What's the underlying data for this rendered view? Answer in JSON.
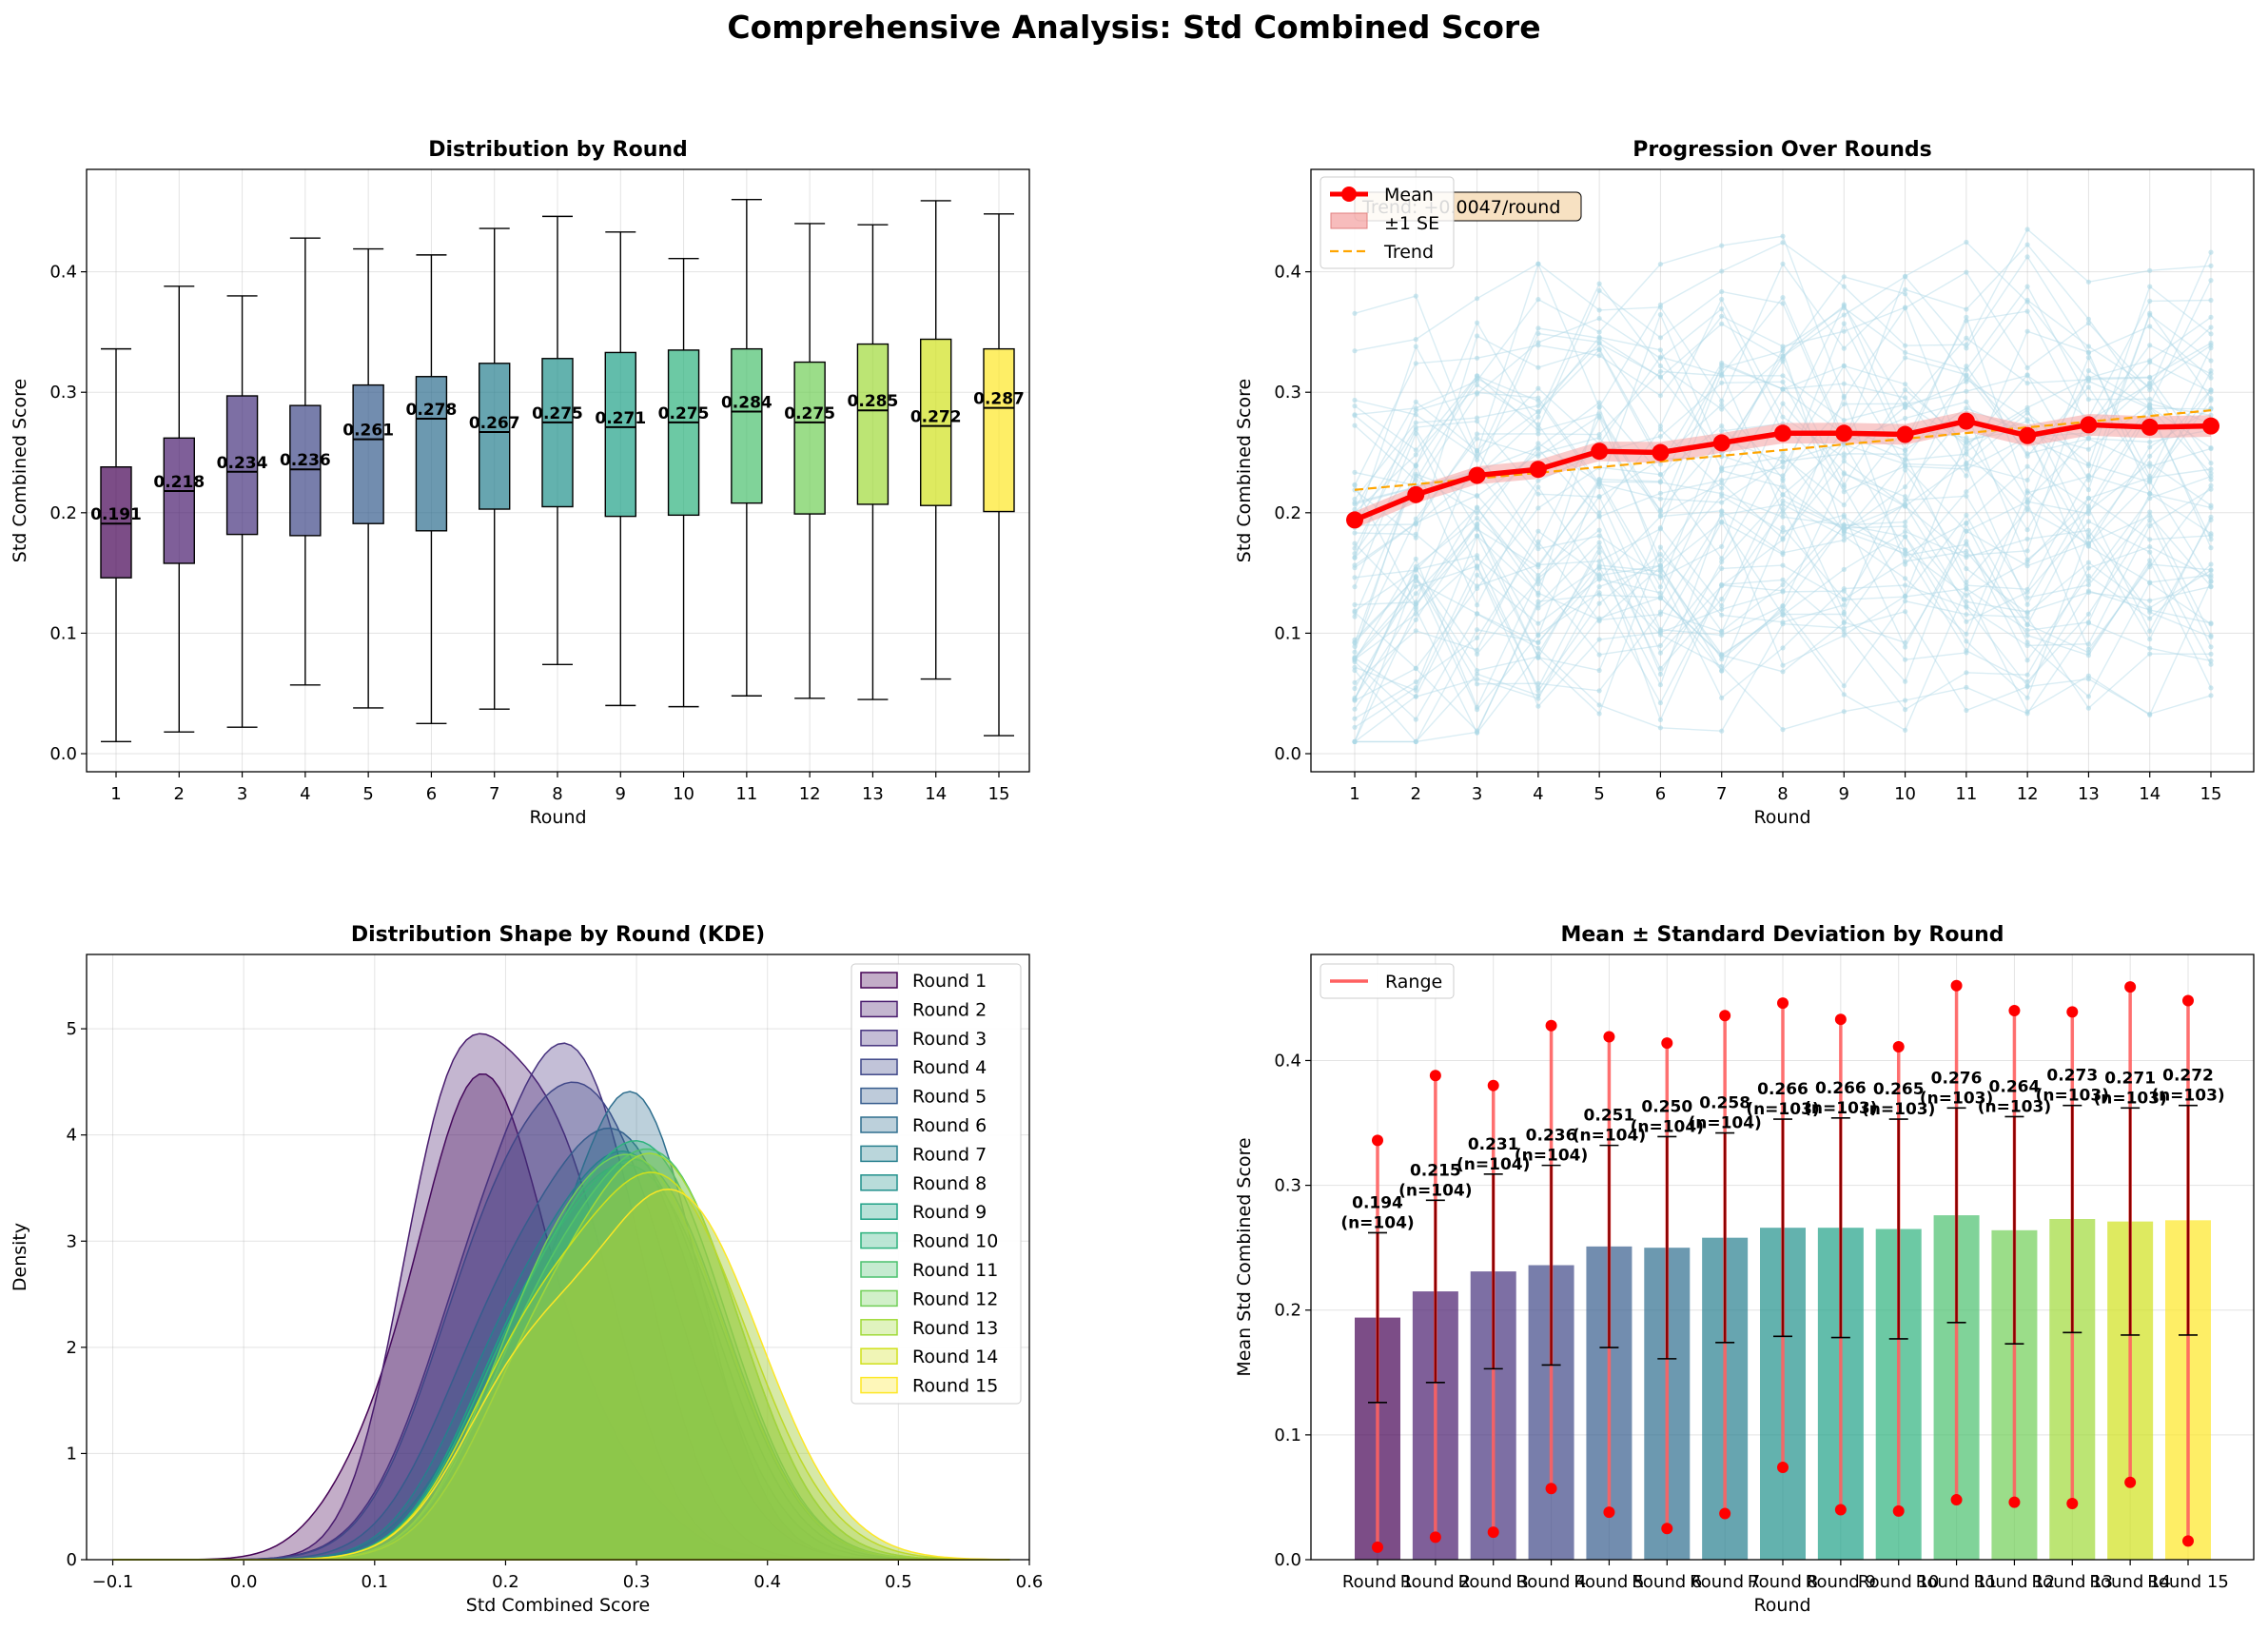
{
  "figure": {
    "title": "Comprehensive Analysis: Std Combined Score"
  },
  "chart_data": [
    {
      "id": "boxplot",
      "type": "box",
      "title": "Distribution by Round",
      "xlabel": "Round",
      "ylabel": "Std Combined Score",
      "ylim": [
        -0.015,
        0.485
      ],
      "yticks": [
        "0.0",
        "0.1",
        "0.2",
        "0.3",
        "0.4"
      ],
      "grid": true,
      "categories": [
        "1",
        "2",
        "3",
        "4",
        "5",
        "6",
        "7",
        "8",
        "9",
        "10",
        "11",
        "12",
        "13",
        "14",
        "15"
      ],
      "median_labels": [
        "0.191",
        "0.218",
        "0.234",
        "0.236",
        "0.261",
        "0.278",
        "0.267",
        "0.275",
        "0.271",
        "0.275",
        "0.284",
        "0.275",
        "0.285",
        "0.272",
        "0.287"
      ],
      "boxes": [
        {
          "whislo": 0.01,
          "q1": 0.146,
          "med": 0.191,
          "q3": 0.238,
          "whishi": 0.336
        },
        {
          "whislo": 0.018,
          "q1": 0.158,
          "med": 0.218,
          "q3": 0.262,
          "whishi": 0.388
        },
        {
          "whislo": 0.022,
          "q1": 0.182,
          "med": 0.234,
          "q3": 0.297,
          "whishi": 0.38
        },
        {
          "whislo": 0.057,
          "q1": 0.181,
          "med": 0.236,
          "q3": 0.289,
          "whishi": 0.428
        },
        {
          "whislo": 0.038,
          "q1": 0.191,
          "med": 0.261,
          "q3": 0.306,
          "whishi": 0.419
        },
        {
          "whislo": 0.025,
          "q1": 0.185,
          "med": 0.278,
          "q3": 0.313,
          "whishi": 0.414
        },
        {
          "whislo": 0.037,
          "q1": 0.203,
          "med": 0.267,
          "q3": 0.324,
          "whishi": 0.436
        },
        {
          "whislo": 0.074,
          "q1": 0.205,
          "med": 0.275,
          "q3": 0.328,
          "whishi": 0.446
        },
        {
          "whislo": 0.04,
          "q1": 0.197,
          "med": 0.271,
          "q3": 0.333,
          "whishi": 0.433
        },
        {
          "whislo": 0.039,
          "q1": 0.198,
          "med": 0.275,
          "q3": 0.335,
          "whishi": 0.411
        },
        {
          "whislo": 0.048,
          "q1": 0.208,
          "med": 0.284,
          "q3": 0.336,
          "whishi": 0.46
        },
        {
          "whislo": 0.046,
          "q1": 0.199,
          "med": 0.275,
          "q3": 0.325,
          "whishi": 0.44
        },
        {
          "whislo": 0.045,
          "q1": 0.207,
          "med": 0.285,
          "q3": 0.34,
          "whishi": 0.439
        },
        {
          "whislo": 0.062,
          "q1": 0.206,
          "med": 0.272,
          "q3": 0.344,
          "whishi": 0.459
        },
        {
          "whislo": 0.015,
          "q1": 0.201,
          "med": 0.287,
          "q3": 0.336,
          "whishi": 0.448
        }
      ]
    },
    {
      "id": "progression",
      "type": "line",
      "title": "Progression Over Rounds",
      "xlabel": "Round",
      "ylabel": "Std Combined Score",
      "ylim": [
        -0.015,
        0.485
      ],
      "yticks": [
        "0.0",
        "0.1",
        "0.2",
        "0.3",
        "0.4"
      ],
      "grid": true,
      "x": [
        1,
        2,
        3,
        4,
        5,
        6,
        7,
        8,
        9,
        10,
        11,
        12,
        13,
        14,
        15
      ],
      "x_tick_labels": [
        "1",
        "2",
        "3",
        "4",
        "5",
        "6",
        "7",
        "8",
        "9",
        "10",
        "11",
        "12",
        "13",
        "14",
        "15"
      ],
      "mean": [
        0.194,
        0.215,
        0.231,
        0.236,
        0.251,
        0.25,
        0.258,
        0.266,
        0.266,
        0.265,
        0.276,
        0.264,
        0.273,
        0.271,
        0.272
      ],
      "se": [
        0.007,
        0.007,
        0.0075,
        0.0078,
        0.0081,
        0.0088,
        0.0082,
        0.0085,
        0.0087,
        0.0086,
        0.0085,
        0.0089,
        0.009,
        0.009,
        0.009
      ],
      "trend": {
        "start": 0.219,
        "end": 0.285,
        "label": "Trend: +0.0047/round"
      },
      "individual_lines": 60,
      "legend": [
        "Mean",
        "±1 SE",
        "Trend"
      ],
      "legend_position": "upper-left",
      "colors": {
        "mean": "#ff0000",
        "se_fill": "#f4a0a0",
        "trend": "#ffa500",
        "individual": "#add8e6"
      }
    },
    {
      "id": "kde",
      "type": "area",
      "title": "Distribution Shape by Round (KDE)",
      "xlabel": "Std Combined Score",
      "ylabel": "Density",
      "xlim": [
        -0.12,
        0.6
      ],
      "ylim": [
        0,
        5.7
      ],
      "xticks": [
        "−0.1",
        "0.0",
        "0.1",
        "0.2",
        "0.3",
        "0.4",
        "0.5",
        "0.6"
      ],
      "xtick_values": [
        -0.1,
        0.0,
        0.1,
        0.2,
        0.3,
        0.4,
        0.5,
        0.6
      ],
      "yticks": [
        "0",
        "1",
        "2",
        "3",
        "4",
        "5"
      ],
      "grid": true,
      "legend_position": "upper-right",
      "series": [
        {
          "name": "Round 1",
          "color": "#440154",
          "peaks": [
            [
              0.18,
              4.2,
              0.045
            ],
            [
              0.1,
              0.7,
              0.04
            ],
            [
              0.26,
              1.0,
              0.05
            ]
          ]
        },
        {
          "name": "Round 2",
          "color": "#481b6d",
          "peaks": [
            [
              0.155,
              3.5,
              0.04
            ],
            [
              0.235,
              3.8,
              0.05
            ]
          ]
        },
        {
          "name": "Round 3",
          "color": "#46327e",
          "peaks": [
            [
              0.18,
              2.2,
              0.05
            ],
            [
              0.26,
              4.1,
              0.05
            ]
          ]
        },
        {
          "name": "Round 4",
          "color": "#3f4788",
          "peaks": [
            [
              0.18,
              1.9,
              0.05
            ],
            [
              0.27,
              4.0,
              0.06
            ]
          ]
        },
        {
          "name": "Round 5",
          "color": "#365c8d",
          "peaks": [
            [
              0.19,
              1.6,
              0.05
            ],
            [
              0.29,
              3.8,
              0.06
            ]
          ]
        },
        {
          "name": "Round 6",
          "color": "#2e6e8e",
          "peaks": [
            [
              0.2,
              1.4,
              0.05
            ],
            [
              0.3,
              4.2,
              0.05
            ]
          ]
        },
        {
          "name": "Round 7",
          "color": "#277f8e",
          "peaks": [
            [
              0.2,
              1.5,
              0.05
            ],
            [
              0.3,
              3.6,
              0.06
            ]
          ]
        },
        {
          "name": "Round 8",
          "color": "#21918c",
          "peaks": [
            [
              0.22,
              1.6,
              0.05
            ],
            [
              0.31,
              3.3,
              0.06
            ]
          ]
        },
        {
          "name": "Round 9",
          "color": "#1fa187",
          "peaks": [
            [
              0.21,
              1.6,
              0.05
            ],
            [
              0.31,
              3.5,
              0.06
            ]
          ]
        },
        {
          "name": "Round 10",
          "color": "#2db27d",
          "peaks": [
            [
              0.21,
              1.5,
              0.05
            ],
            [
              0.31,
              3.7,
              0.06
            ]
          ]
        },
        {
          "name": "Round 11",
          "color": "#4ac16d",
          "peaks": [
            [
              0.22,
              1.6,
              0.05
            ],
            [
              0.32,
              3.6,
              0.06
            ]
          ]
        },
        {
          "name": "Round 12",
          "color": "#71cf57",
          "peaks": [
            [
              0.22,
              1.6,
              0.05
            ],
            [
              0.31,
              3.4,
              0.06
            ]
          ]
        },
        {
          "name": "Round 13",
          "color": "#a0da39",
          "peaks": [
            [
              0.22,
              1.4,
              0.05
            ],
            [
              0.32,
              3.6,
              0.06
            ]
          ]
        },
        {
          "name": "Round 14",
          "color": "#d0e11c",
          "peaks": [
            [
              0.21,
              1.4,
              0.05
            ],
            [
              0.32,
              3.5,
              0.065
            ]
          ]
        },
        {
          "name": "Round 15",
          "color": "#fde725",
          "peaks": [
            [
              0.21,
              1.4,
              0.05
            ],
            [
              0.33,
              3.4,
              0.065
            ]
          ]
        }
      ]
    },
    {
      "id": "meanstd",
      "type": "bar",
      "title": "Mean ± Standard Deviation by Round",
      "xlabel": "Round",
      "ylabel": "Mean Std Combined Score",
      "ylim": [
        0,
        0.485
      ],
      "yticks": [
        "0.0",
        "0.1",
        "0.2",
        "0.3",
        "0.4"
      ],
      "grid": true,
      "categories": [
        "Round 1",
        "Round 2",
        "Round 3",
        "Round 4",
        "Round 5",
        "Round 6",
        "Round 7",
        "Round 8",
        "Round 9",
        "Round 10",
        "Round 11",
        "Round 12",
        "Round 13",
        "Round 14",
        "Round 15"
      ],
      "values": [
        0.194,
        0.215,
        0.231,
        0.236,
        0.251,
        0.25,
        0.258,
        0.266,
        0.266,
        0.265,
        0.276,
        0.264,
        0.273,
        0.271,
        0.272
      ],
      "std": [
        0.068,
        0.073,
        0.078,
        0.08,
        0.081,
        0.089,
        0.084,
        0.087,
        0.088,
        0.088,
        0.086,
        0.091,
        0.091,
        0.091,
        0.092
      ],
      "min": [
        0.01,
        0.018,
        0.022,
        0.057,
        0.038,
        0.025,
        0.037,
        0.074,
        0.04,
        0.039,
        0.048,
        0.046,
        0.045,
        0.062,
        0.015
      ],
      "max": [
        0.336,
        0.388,
        0.38,
        0.428,
        0.419,
        0.414,
        0.436,
        0.446,
        0.433,
        0.411,
        0.46,
        0.44,
        0.439,
        0.459,
        0.448
      ],
      "value_labels": [
        "0.194",
        "0.215",
        "0.231",
        "0.236",
        "0.251",
        "0.250",
        "0.258",
        "0.266",
        "0.266",
        "0.265",
        "0.276",
        "0.264",
        "0.273",
        "0.271",
        "0.272"
      ],
      "n_labels": [
        "(n=104)",
        "(n=104)",
        "(n=104)",
        "(n=104)",
        "(n=104)",
        "(n=104)",
        "(n=104)",
        "(n=103)",
        "(n=103)",
        "(n=103)",
        "(n=103)",
        "(n=103)",
        "(n=103)",
        "(n=103)",
        "(n=103)"
      ],
      "legend": [
        "Range"
      ],
      "legend_position": "upper-left",
      "colors": {
        "range": "#ff6060",
        "errbar": "#8b0000",
        "dot": "#ff0000"
      }
    }
  ]
}
